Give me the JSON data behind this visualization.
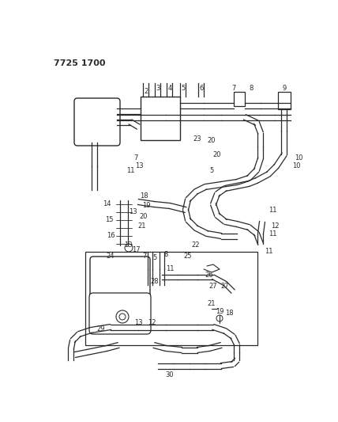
{
  "title_code": "7725 1700",
  "bg_color": "#ffffff",
  "line_color": "#2a2a2a",
  "text_color": "#2a2a2a",
  "figsize": [
    4.28,
    5.33
  ],
  "dpi": 100
}
